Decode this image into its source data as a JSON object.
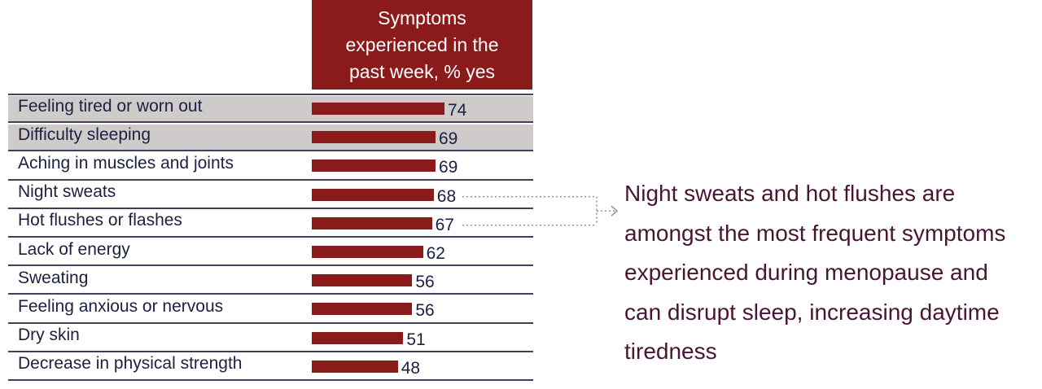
{
  "chart_data": {
    "type": "bar",
    "orientation": "horizontal",
    "title": "Symptoms experienced in the past week, % yes",
    "categories": [
      "Feeling tired or worn out",
      "Difficulty sleeping",
      "Aching in muscles and joints",
      "Night sweats",
      "Hot flushes or flashes",
      "Lack of energy",
      "Sweating",
      "Feeling anxious or nervous",
      "Dry skin",
      "Decrease in physical strength"
    ],
    "values": [
      74,
      69,
      69,
      68,
      67,
      62,
      56,
      56,
      51,
      48
    ],
    "highlighted": [
      "Feeling tired or worn out",
      "Difficulty sleeping"
    ],
    "xlim": [
      0,
      100
    ],
    "grid": false,
    "legend": "none"
  },
  "callout": {
    "text": "Night sweats and hot flushes are amongst the most frequent symptoms experienced during menopause and can disrupt sleep, increasing daytime tiredness",
    "points_to": [
      "Night sweats",
      "Hot flushes or flashes"
    ]
  },
  "colors": {
    "bar": "#8b1a1a",
    "header_bg": "#8b1a1a",
    "header_text": "#ffffff",
    "highlight_row": "#cfcbcb",
    "label_text": "#1c2040",
    "callout_text": "#4a1535",
    "connector": "#8a90a0"
  }
}
